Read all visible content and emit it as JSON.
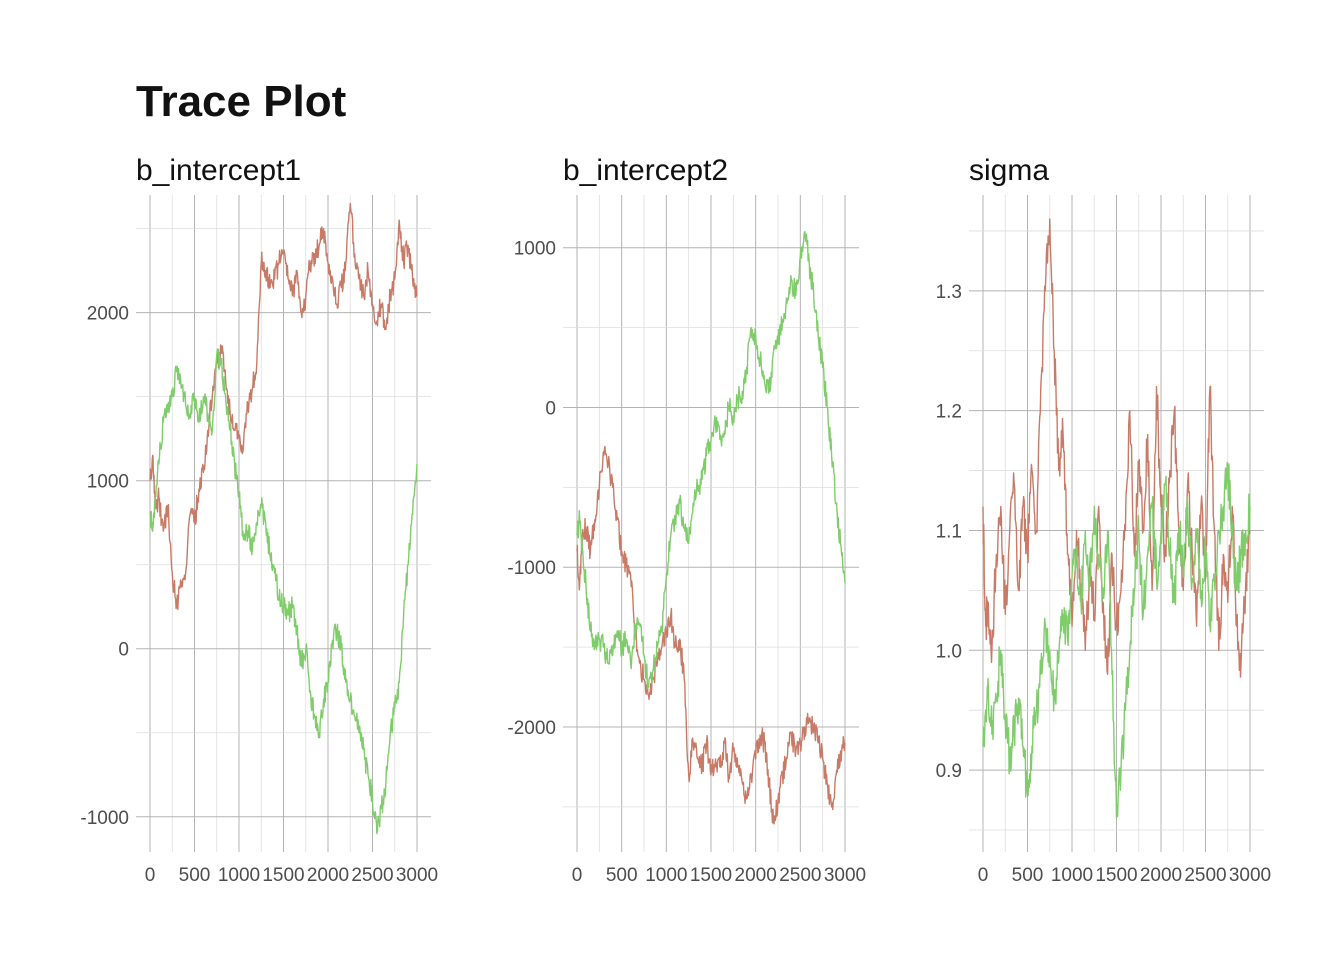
{
  "title": "Trace Plot",
  "colors": {
    "chain_1": "#c87a66",
    "chain_2": "#7fcc6a",
    "grid_major": "#b3b3b3",
    "grid_minor": "#dedede",
    "text": "#111111",
    "tick_text": "#4d4d4d"
  },
  "chart_data": [
    {
      "type": "line",
      "title": "b_intercept1",
      "xlabel": "",
      "ylabel": "",
      "xlim": [
        0,
        3000
      ],
      "ylim": [
        -1150,
        2700
      ],
      "x_ticks": [
        0,
        500,
        1000,
        1500,
        2000,
        2500,
        3000
      ],
      "x_tick_labels": [
        "0",
        "500",
        "1000",
        "1500",
        "2000",
        "2500",
        "3000"
      ],
      "y_ticks": [
        -1000,
        0,
        1000,
        2000
      ],
      "y_tick_labels": [
        "-1000",
        "0",
        "1000",
        "2000"
      ],
      "grid": true,
      "legend": "none",
      "series": [
        {
          "color": "#c87a66",
          "x": [
            0,
            30,
            60,
            100,
            150,
            200,
            250,
            300,
            350,
            400,
            450,
            500,
            550,
            600,
            650,
            700,
            750,
            800,
            850,
            900,
            950,
            1000,
            1050,
            1100,
            1150,
            1200,
            1250,
            1300,
            1350,
            1400,
            1450,
            1500,
            1550,
            1600,
            1650,
            1700,
            1750,
            1800,
            1850,
            1900,
            1950,
            2000,
            2050,
            2100,
            2150,
            2200,
            2250,
            2300,
            2350,
            2400,
            2450,
            2500,
            2550,
            2600,
            2650,
            2700,
            2750,
            2800,
            2850,
            2900,
            2950,
            3000
          ],
          "y": [
            1000,
            1150,
            850,
            900,
            700,
            850,
            450,
            250,
            400,
            450,
            800,
            750,
            950,
            1050,
            1300,
            1500,
            1700,
            1800,
            1600,
            1400,
            1300,
            1250,
            1200,
            1450,
            1550,
            1700,
            2300,
            2250,
            2150,
            2200,
            2300,
            2350,
            2200,
            2100,
            2250,
            2000,
            2100,
            2300,
            2350,
            2400,
            2500,
            2300,
            2200,
            2050,
            2150,
            2300,
            2650,
            2350,
            2200,
            2100,
            2250,
            2050,
            1950,
            2050,
            1900,
            2100,
            2200,
            2550,
            2300,
            2400,
            2200,
            2100
          ]
        },
        {
          "color": "#7fcc6a",
          "x": [
            0,
            30,
            60,
            100,
            150,
            200,
            250,
            300,
            350,
            400,
            450,
            500,
            550,
            600,
            650,
            700,
            750,
            800,
            850,
            900,
            950,
            1000,
            1050,
            1100,
            1150,
            1200,
            1250,
            1300,
            1350,
            1400,
            1450,
            1500,
            1550,
            1600,
            1650,
            1700,
            1750,
            1800,
            1850,
            1900,
            1950,
            2000,
            2050,
            2100,
            2150,
            2200,
            2250,
            2300,
            2350,
            2400,
            2450,
            2500,
            2550,
            2600,
            2650,
            2700,
            2750,
            2800,
            2850,
            2900,
            2950,
            3000
          ],
          "y": [
            800,
            700,
            900,
            1100,
            1350,
            1450,
            1500,
            1650,
            1550,
            1450,
            1400,
            1500,
            1350,
            1500,
            1400,
            1300,
            1750,
            1700,
            1500,
            1300,
            1100,
            900,
            650,
            700,
            600,
            750,
            850,
            750,
            550,
            450,
            300,
            250,
            200,
            250,
            100,
            -100,
            0,
            -250,
            -400,
            -500,
            -300,
            -200,
            50,
            100,
            0,
            -200,
            -300,
            -400,
            -500,
            -600,
            -750,
            -900,
            -1100,
            -950,
            -800,
            -500,
            -350,
            -200,
            200,
            500,
            800,
            1100
          ]
        }
      ]
    },
    {
      "type": "line",
      "title": "b_intercept2",
      "xlabel": "",
      "ylabel": "",
      "xlim": [
        0,
        3000
      ],
      "ylim": [
        -2720,
        1330
      ],
      "x_ticks": [
        0,
        500,
        1000,
        1500,
        2000,
        2500,
        3000
      ],
      "x_tick_labels": [
        "0",
        "500",
        "1000",
        "1500",
        "2000",
        "2500",
        "3000"
      ],
      "y_ticks": [
        -2000,
        -1000,
        0,
        1000
      ],
      "y_tick_labels": [
        "-2000",
        "-1000",
        "0",
        "1000"
      ],
      "grid": true,
      "legend": "none",
      "series": [
        {
          "color": "#c87a66",
          "x": [
            0,
            30,
            60,
            100,
            150,
            200,
            250,
            300,
            350,
            400,
            450,
            500,
            550,
            600,
            650,
            700,
            750,
            800,
            850,
            900,
            950,
            1000,
            1050,
            1100,
            1150,
            1200,
            1250,
            1300,
            1350,
            1400,
            1450,
            1500,
            1550,
            1600,
            1650,
            1700,
            1750,
            1800,
            1850,
            1900,
            1950,
            2000,
            2050,
            2100,
            2150,
            2200,
            2250,
            2300,
            2350,
            2400,
            2450,
            2500,
            2550,
            2600,
            2650,
            2700,
            2750,
            2800,
            2850,
            2900,
            2950,
            3000
          ],
          "y": [
            -900,
            -1100,
            -800,
            -750,
            -900,
            -700,
            -500,
            -300,
            -350,
            -500,
            -700,
            -900,
            -1000,
            -1050,
            -1400,
            -1600,
            -1700,
            -1800,
            -1700,
            -1600,
            -1500,
            -1400,
            -1300,
            -1500,
            -1450,
            -1700,
            -2300,
            -2100,
            -2200,
            -2250,
            -2100,
            -2300,
            -2200,
            -2250,
            -2100,
            -2300,
            -2150,
            -2250,
            -2350,
            -2450,
            -2300,
            -2200,
            -2050,
            -2100,
            -2350,
            -2600,
            -2450,
            -2300,
            -2200,
            -2050,
            -2150,
            -2100,
            -2000,
            -1950,
            -2000,
            -2100,
            -2200,
            -2350,
            -2500,
            -2300,
            -2150,
            -2100
          ]
        },
        {
          "color": "#7fcc6a",
          "x": [
            0,
            30,
            60,
            100,
            150,
            200,
            250,
            300,
            350,
            400,
            450,
            500,
            550,
            600,
            650,
            700,
            750,
            800,
            850,
            900,
            950,
            1000,
            1050,
            1100,
            1150,
            1200,
            1250,
            1300,
            1350,
            1400,
            1450,
            1500,
            1550,
            1600,
            1650,
            1700,
            1750,
            1800,
            1850,
            1900,
            1950,
            2000,
            2050,
            2100,
            2150,
            2200,
            2250,
            2300,
            2350,
            2400,
            2450,
            2500,
            2550,
            2600,
            2650,
            2700,
            2750,
            2800,
            2850,
            2900,
            2950,
            3000
          ],
          "y": [
            -800,
            -700,
            -900,
            -1100,
            -1400,
            -1500,
            -1450,
            -1500,
            -1600,
            -1550,
            -1400,
            -1500,
            -1450,
            -1600,
            -1400,
            -1350,
            -1550,
            -1750,
            -1650,
            -1500,
            -1400,
            -1050,
            -800,
            -700,
            -600,
            -750,
            -850,
            -600,
            -500,
            -450,
            -300,
            -200,
            -100,
            -200,
            -150,
            0,
            -50,
            50,
            100,
            250,
            500,
            450,
            300,
            150,
            100,
            350,
            400,
            550,
            650,
            800,
            700,
            950,
            1100,
            900,
            700,
            450,
            250,
            0,
            -300,
            -600,
            -850,
            -1100
          ]
        }
      ]
    },
    {
      "type": "line",
      "title": "sigma",
      "xlabel": "",
      "ylabel": "",
      "xlim": [
        0,
        3000
      ],
      "ylim": [
        0.84,
        1.38
      ],
      "x_ticks": [
        0,
        500,
        1000,
        1500,
        2000,
        2500,
        3000
      ],
      "x_tick_labels": [
        "0",
        "500",
        "1000",
        "1500",
        "2000",
        "2500",
        "3000"
      ],
      "y_ticks": [
        0.9,
        1.0,
        1.1,
        1.2,
        1.3
      ],
      "y_tick_labels": [
        "0.9",
        "1.0",
        "1.1",
        "1.2",
        "1.3"
      ],
      "grid": true,
      "legend": "none",
      "series": [
        {
          "color": "#c87a66",
          "x": [
            0,
            30,
            60,
            100,
            150,
            200,
            250,
            300,
            350,
            400,
            450,
            500,
            550,
            600,
            650,
            700,
            750,
            800,
            850,
            900,
            950,
            1000,
            1050,
            1100,
            1150,
            1200,
            1250,
            1300,
            1350,
            1400,
            1450,
            1500,
            1550,
            1600,
            1650,
            1700,
            1750,
            1800,
            1850,
            1900,
            1950,
            2000,
            2050,
            2100,
            2150,
            2200,
            2250,
            2300,
            2350,
            2400,
            2450,
            2500,
            2550,
            2600,
            2650,
            2700,
            2750,
            2800,
            2850,
            2900,
            2950,
            3000
          ],
          "y": [
            1.12,
            1.02,
            1.04,
            1.0,
            1.08,
            1.12,
            1.03,
            1.1,
            1.14,
            1.05,
            1.12,
            1.08,
            1.15,
            1.1,
            1.22,
            1.3,
            1.36,
            1.25,
            1.15,
            1.18,
            1.08,
            1.02,
            1.1,
            1.05,
            1.0,
            1.07,
            1.03,
            1.12,
            1.04,
            0.98,
            1.08,
            1.02,
            1.05,
            1.1,
            1.2,
            1.08,
            1.15,
            1.1,
            1.18,
            1.05,
            1.22,
            1.12,
            1.08,
            1.15,
            1.2,
            1.1,
            1.05,
            1.14,
            1.08,
            1.02,
            1.12,
            1.06,
            1.22,
            1.1,
            1.0,
            1.08,
            1.04,
            1.12,
            1.02,
            0.99,
            1.05,
            1.1
          ]
        },
        {
          "color": "#7fcc6a",
          "x": [
            0,
            30,
            60,
            100,
            150,
            200,
            250,
            300,
            350,
            400,
            450,
            500,
            550,
            600,
            650,
            700,
            750,
            800,
            850,
            900,
            950,
            1000,
            1050,
            1100,
            1150,
            1200,
            1250,
            1300,
            1350,
            1400,
            1450,
            1500,
            1550,
            1600,
            1650,
            1700,
            1750,
            1800,
            1850,
            1900,
            1950,
            2000,
            2050,
            2100,
            2150,
            2200,
            2250,
            2300,
            2350,
            2400,
            2450,
            2500,
            2550,
            2600,
            2650,
            2700,
            2750,
            2800,
            2850,
            2900,
            2950,
            3000
          ],
          "y": [
            0.92,
            0.95,
            0.97,
            0.93,
            0.96,
            1.0,
            0.94,
            0.91,
            0.93,
            0.96,
            0.92,
            0.88,
            0.92,
            0.95,
            0.98,
            1.02,
            1.0,
            0.96,
            0.99,
            1.03,
            1.01,
            1.06,
            1.08,
            1.04,
            1.1,
            1.06,
            1.12,
            1.08,
            1.05,
            1.1,
            0.98,
            0.86,
            0.9,
            0.95,
            1.0,
            1.05,
            1.1,
            1.03,
            1.08,
            1.12,
            1.06,
            1.1,
            1.14,
            1.08,
            1.04,
            1.1,
            1.07,
            1.12,
            1.06,
            1.1,
            1.05,
            1.08,
            1.02,
            1.06,
            1.1,
            1.12,
            1.15,
            1.1,
            1.05,
            1.08,
            1.1,
            1.12
          ]
        }
      ]
    }
  ]
}
